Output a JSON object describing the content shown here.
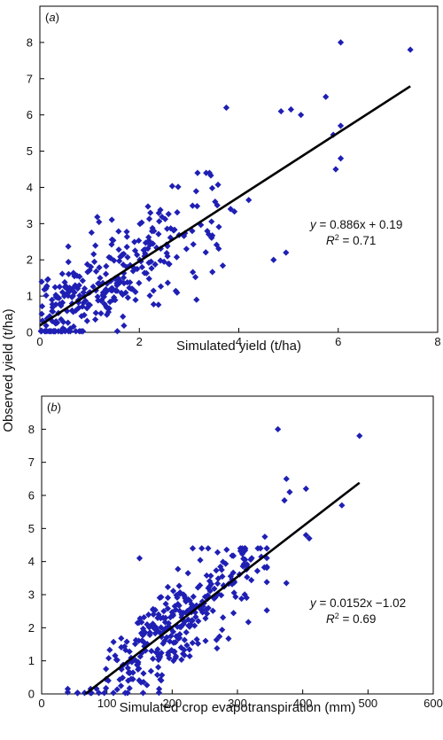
{
  "ylabel": "Observed yield (t/ha)",
  "colors": {
    "point": "#1f1fb4",
    "line": "#000000"
  },
  "chart_data": [
    {
      "type": "scatter",
      "panel": "(a)",
      "xlabel": "Simulated yield (t/ha)",
      "xlim": [
        0,
        8
      ],
      "ylim": [
        0,
        9
      ],
      "xticks": [
        "0",
        "2",
        "4",
        "6",
        "8"
      ],
      "yticks": [
        "0",
        "1",
        "2",
        "3",
        "4",
        "5",
        "6",
        "7",
        "8"
      ],
      "fit": {
        "slope": 0.886,
        "intercept": 0.19,
        "x_range": [
          0,
          7.45
        ]
      },
      "equation": "y = 0.886x + 0.19",
      "r2": "R2 = 0.71",
      "seed": 11,
      "points_outliers": [
        [
          6.05,
          8.0
        ],
        [
          7.45,
          7.8
        ],
        [
          3.75,
          6.2
        ],
        [
          4.85,
          6.1
        ],
        [
          5.05,
          6.15
        ],
        [
          5.25,
          6.0
        ],
        [
          5.75,
          6.5
        ],
        [
          6.05,
          5.7
        ],
        [
          5.9,
          5.45
        ],
        [
          4.7,
          2.0
        ],
        [
          4.95,
          2.2
        ],
        [
          6.05,
          4.8
        ],
        [
          5.95,
          4.5
        ],
        [
          3.15,
          0.9
        ]
      ]
    },
    {
      "type": "scatter",
      "panel": "(b)",
      "xlabel": "Simulated crop evapotranspiration (mm)",
      "xlim": [
        0,
        600
      ],
      "ylim": [
        0,
        9
      ],
      "xticks": [
        "0",
        "100",
        "200",
        "300",
        "400",
        "500",
        "600"
      ],
      "yticks": [
        "0",
        "1",
        "2",
        "3",
        "4",
        "5",
        "6",
        "7",
        "8"
      ],
      "fit": {
        "slope": 0.0152,
        "intercept": -1.02,
        "x_range": [
          67,
          487
        ]
      },
      "equation": "y = 0.0152x −1.02",
      "r2": "R2 = 0.69",
      "seed": 29,
      "points_outliers": [
        [
          362,
          8.0
        ],
        [
          487,
          7.8
        ],
        [
          375,
          6.5
        ],
        [
          380,
          6.1
        ],
        [
          405,
          6.2
        ],
        [
          372,
          5.85
        ],
        [
          460,
          5.7
        ],
        [
          405,
          4.8
        ],
        [
          410,
          4.7
        ],
        [
          342,
          4.75
        ],
        [
          375,
          3.35
        ],
        [
          150,
          4.1
        ],
        [
          180,
          0.15
        ],
        [
          40,
          0.15
        ],
        [
          40,
          0.05
        ],
        [
          75,
          0.15
        ]
      ]
    }
  ]
}
